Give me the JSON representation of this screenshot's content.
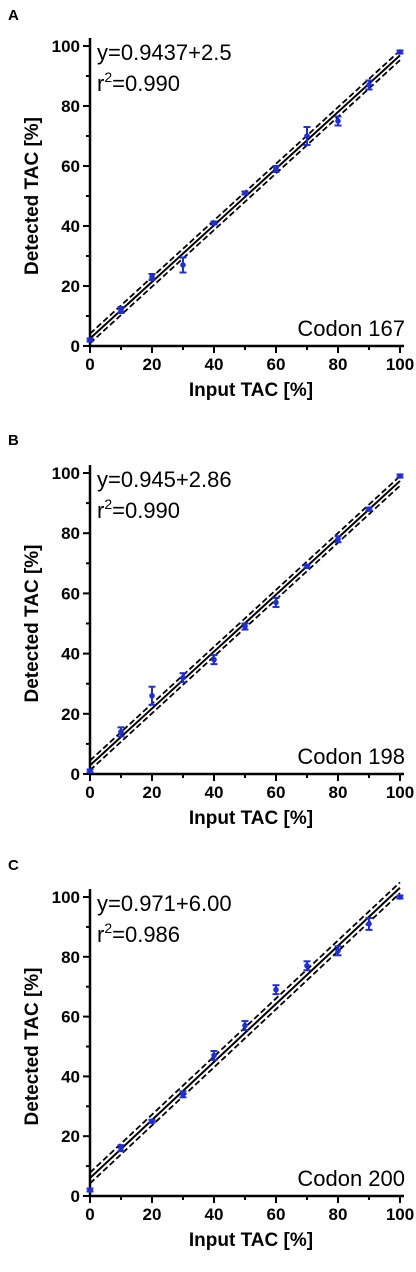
{
  "figure": {
    "panels": [
      "A",
      "B",
      "C"
    ]
  },
  "chart_data": [
    {
      "type": "scatter",
      "panel_label": "A",
      "xlabel": "Input TAC [%]",
      "ylabel": "Detected TAC [%]",
      "xlim": [
        0,
        100
      ],
      "ylim": [
        0,
        100
      ],
      "xticks": [
        "0",
        "20",
        "40",
        "60",
        "80",
        "100"
      ],
      "yticks": [
        "0",
        "20",
        "40",
        "60",
        "80",
        "100"
      ],
      "equation": "y=0.9437+2.5",
      "r2_prefix": "r",
      "r2_sup": "2",
      "r2_value": "=0.990",
      "annotation": "Codon 167",
      "fit": {
        "slope": 0.9437,
        "intercept": 2.5,
        "band": 1.6
      },
      "points": [
        {
          "x": 0,
          "y": 2,
          "err": 0.5
        },
        {
          "x": 10,
          "y": 12,
          "err": 1
        },
        {
          "x": 20,
          "y": 23,
          "err": 1
        },
        {
          "x": 30,
          "y": 27,
          "err": 2.5
        },
        {
          "x": 40,
          "y": 41,
          "err": 0.5
        },
        {
          "x": 50,
          "y": 51,
          "err": 0.5
        },
        {
          "x": 60,
          "y": 59,
          "err": 1
        },
        {
          "x": 70,
          "y": 70,
          "err": 3
        },
        {
          "x": 80,
          "y": 75,
          "err": 1.5
        },
        {
          "x": 90,
          "y": 87,
          "err": 1.5
        },
        {
          "x": 100,
          "y": 98,
          "err": 0.5
        }
      ],
      "colors": {
        "points": "#1f2fd0",
        "line": "#000000"
      }
    },
    {
      "type": "scatter",
      "panel_label": "B",
      "xlabel": "Input TAC [%]",
      "ylabel": "Detected TAC [%]",
      "xlim": [
        0,
        100
      ],
      "ylim": [
        0,
        100
      ],
      "xticks": [
        "0",
        "20",
        "40",
        "60",
        "80",
        "100"
      ],
      "yticks": [
        "0",
        "20",
        "40",
        "60",
        "80",
        "100"
      ],
      "equation": "y=0.945+2.86",
      "r2_prefix": "r",
      "r2_sup": "2",
      "r2_value": "=0.990",
      "annotation": "Codon 198",
      "fit": {
        "slope": 0.945,
        "intercept": 2.86,
        "band": 1.6
      },
      "points": [
        {
          "x": 0,
          "y": 1,
          "err": 0.5
        },
        {
          "x": 10,
          "y": 14,
          "err": 1.5
        },
        {
          "x": 20,
          "y": 26,
          "err": 3
        },
        {
          "x": 30,
          "y": 32,
          "err": 1.5
        },
        {
          "x": 40,
          "y": 38,
          "err": 1.5
        },
        {
          "x": 50,
          "y": 49,
          "err": 1
        },
        {
          "x": 60,
          "y": 57,
          "err": 1.5
        },
        {
          "x": 70,
          "y": 69,
          "err": 0.5
        },
        {
          "x": 80,
          "y": 78,
          "err": 1
        },
        {
          "x": 90,
          "y": 88,
          "err": 0.5
        },
        {
          "x": 100,
          "y": 99,
          "err": 0.5
        }
      ],
      "colors": {
        "points": "#1f2fd0",
        "line": "#000000"
      }
    },
    {
      "type": "scatter",
      "panel_label": "C",
      "xlabel": "Input TAC [%]",
      "ylabel": "Detected TAC [%]",
      "xlim": [
        0,
        100
      ],
      "ylim": [
        0,
        100
      ],
      "xticks": [
        "0",
        "20",
        "40",
        "60",
        "80",
        "100"
      ],
      "yticks": [
        "0",
        "20",
        "40",
        "60",
        "80",
        "100"
      ],
      "equation": "y=0.971+6.00",
      "r2_prefix": "r",
      "r2_sup": "2",
      "r2_value": "=0.986",
      "annotation": "Codon 200",
      "fit": {
        "slope": 0.971,
        "intercept": 6.0,
        "band": 1.8
      },
      "points": [
        {
          "x": 0,
          "y": 2,
          "err": 0.5
        },
        {
          "x": 10,
          "y": 16,
          "err": 1
        },
        {
          "x": 20,
          "y": 25,
          "err": 0.5
        },
        {
          "x": 30,
          "y": 34,
          "err": 1
        },
        {
          "x": 40,
          "y": 47,
          "err": 1.5
        },
        {
          "x": 50,
          "y": 57,
          "err": 1.5
        },
        {
          "x": 60,
          "y": 69,
          "err": 1.5
        },
        {
          "x": 70,
          "y": 77,
          "err": 1.5
        },
        {
          "x": 80,
          "y": 82,
          "err": 1.5
        },
        {
          "x": 90,
          "y": 91,
          "err": 2
        },
        {
          "x": 100,
          "y": 100,
          "err": 0.5
        }
      ],
      "colors": {
        "points": "#1f2fd0",
        "line": "#000000"
      }
    }
  ]
}
